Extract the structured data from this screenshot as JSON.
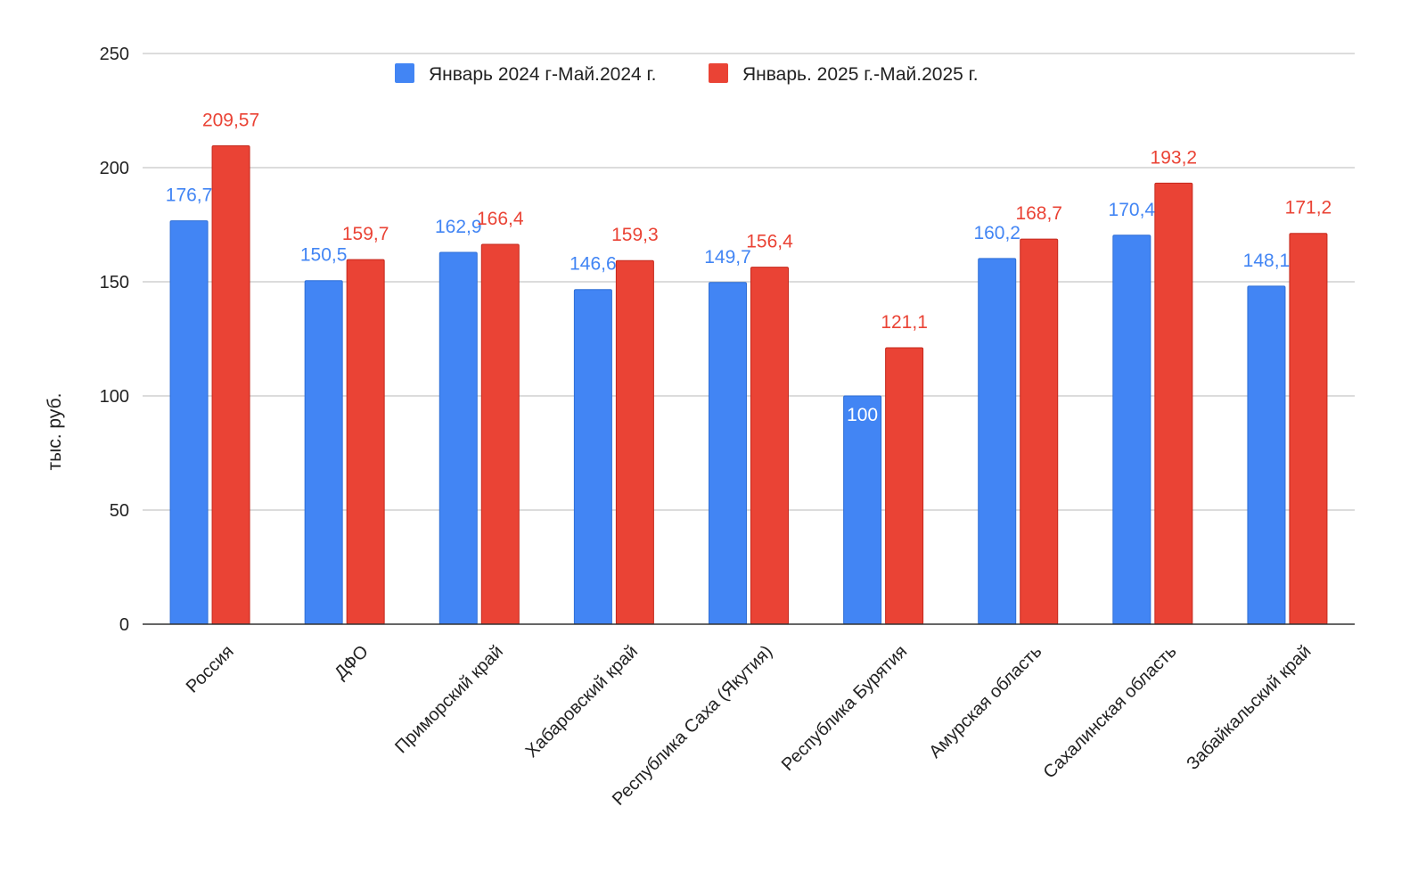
{
  "chart_data": {
    "type": "bar",
    "title": "",
    "xlabel": "",
    "ylabel": "тыс. руб.",
    "ylim": [
      0,
      250
    ],
    "yticks": [
      0,
      50,
      100,
      150,
      200,
      250
    ],
    "grid": true,
    "legend_position": "top",
    "categories": [
      "Россия",
      "ДФО",
      "Приморский край",
      "Хабаровский край",
      "Республика Саха (Якутия)",
      "Республика Бурятия",
      "Амурская область",
      "Сахалинская область",
      "Забайкальский край"
    ],
    "series": [
      {
        "name": "Январь 2024 г-Май.2024 г.",
        "color": "#4285f4",
        "values": [
          176.7,
          150.5,
          162.9,
          146.6,
          149.7,
          100,
          160.2,
          170.4,
          148.1
        ],
        "labels": [
          "176,7",
          "150,5",
          "162,9",
          "146,6",
          "149,7",
          "100",
          "160,2",
          "170,4",
          "148,1"
        ]
      },
      {
        "name": "Январь. 2025 г.-Май.2025 г.",
        "color": "#ea4335",
        "values": [
          209.57,
          159.7,
          166.4,
          159.3,
          156.4,
          121.1,
          168.7,
          193.2,
          171.2
        ],
        "labels": [
          "209,57",
          "159,7",
          "166,4",
          "159,3",
          "156,4",
          "121,1",
          "168,7",
          "193,2",
          "171,2"
        ]
      }
    ]
  }
}
